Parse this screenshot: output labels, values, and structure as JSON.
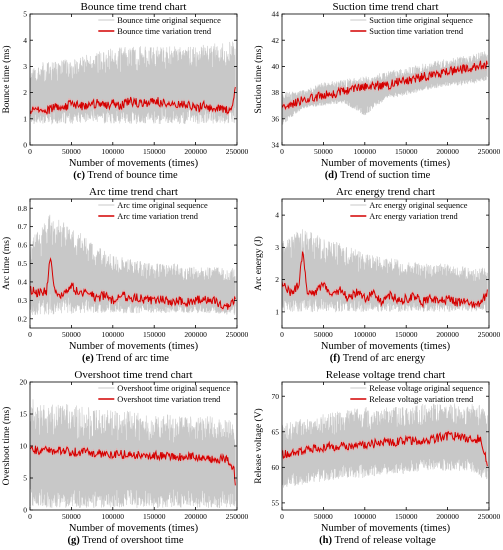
{
  "colors": {
    "original": "#c8c8c8",
    "trend": "#d40000",
    "band": "#f2a6a6",
    "axis": "#000000"
  },
  "chart_data": [
    {
      "id": "c",
      "type": "line",
      "title": "Bounce time trend chart",
      "xlabel": "Number of movements (times)",
      "ylabel": "Bounce time (ms)",
      "xlim": [
        0,
        250000
      ],
      "ylim": [
        0,
        5
      ],
      "xticks": [
        0,
        50000,
        100000,
        150000,
        200000,
        250000
      ],
      "yticks": [
        0,
        1,
        2,
        3,
        4,
        5
      ],
      "legend_position": "top-right",
      "caption_letter": "(c)",
      "caption_text": "Trend of bounce time",
      "series": [
        {
          "name": "Bounce time original sequence",
          "style": "noise",
          "x": [
            0,
            25000,
            50000,
            75000,
            100000,
            125000,
            150000,
            175000,
            200000,
            225000,
            248000
          ],
          "low": [
            0.8,
            0.8,
            0.8,
            0.9,
            0.8,
            0.8,
            0.8,
            0.8,
            0.8,
            0.8,
            0.8
          ],
          "high": [
            3.1,
            3.2,
            3.3,
            3.5,
            3.7,
            3.8,
            3.8,
            3.8,
            3.8,
            3.9,
            4.0
          ]
        },
        {
          "name": "Bounce time variation trend",
          "style": "trend",
          "x": [
            0,
            10000,
            20000,
            30000,
            40000,
            50000,
            60000,
            70000,
            80000,
            90000,
            100000,
            110000,
            120000,
            130000,
            140000,
            150000,
            160000,
            170000,
            180000,
            190000,
            200000,
            210000,
            220000,
            230000,
            240000,
            246000,
            248000
          ],
          "y": [
            1.3,
            1.4,
            1.3,
            1.5,
            1.4,
            1.6,
            1.5,
            1.5,
            1.6,
            1.5,
            1.6,
            1.5,
            1.7,
            1.6,
            1.6,
            1.7,
            1.6,
            1.6,
            1.5,
            1.6,
            1.4,
            1.5,
            1.4,
            1.4,
            1.3,
            1.6,
            2.3
          ]
        }
      ]
    },
    {
      "id": "d",
      "type": "line",
      "title": "Suction time trend chart",
      "xlabel": "Number of movements (times)",
      "ylabel": "Suction time (ms)",
      "xlim": [
        0,
        250000
      ],
      "ylim": [
        34,
        44
      ],
      "xticks": [
        0,
        50000,
        100000,
        150000,
        200000,
        250000
      ],
      "yticks": [
        34,
        36,
        38,
        40,
        42,
        44
      ],
      "legend_position": "top-right",
      "caption_letter": "(d)",
      "caption_text": "Trend of suction time",
      "series": [
        {
          "name": "Suction time original sequence",
          "style": "noise",
          "x": [
            0,
            25000,
            50000,
            75000,
            100000,
            125000,
            150000,
            175000,
            200000,
            225000,
            248000
          ],
          "low": [
            35.5,
            36.8,
            37.0,
            37.2,
            36.2,
            37.5,
            37.8,
            38.2,
            38.5,
            38.6,
            38.9
          ],
          "high": [
            38.0,
            38.2,
            38.8,
            39.0,
            39.3,
            39.6,
            39.9,
            40.3,
            40.6,
            40.9,
            41.2
          ]
        },
        {
          "name": "Suction time variation trend",
          "style": "trend",
          "x": [
            0,
            10000,
            20000,
            30000,
            40000,
            50000,
            60000,
            70000,
            80000,
            90000,
            100000,
            110000,
            120000,
            130000,
            140000,
            150000,
            160000,
            170000,
            180000,
            190000,
            200000,
            210000,
            220000,
            230000,
            240000,
            248000
          ],
          "y": [
            36.9,
            37.0,
            37.3,
            37.5,
            37.6,
            37.8,
            37.9,
            38.0,
            38.2,
            38.3,
            38.4,
            38.5,
            38.6,
            38.6,
            38.8,
            38.9,
            39.0,
            39.2,
            39.3,
            39.4,
            39.6,
            39.7,
            39.8,
            39.9,
            40.1,
            40.2
          ]
        }
      ]
    },
    {
      "id": "e",
      "type": "line",
      "title": "Arc time trend chart",
      "xlabel": "Number of movements (times)",
      "ylabel": "Arc time (ms)",
      "xlim": [
        0,
        250000
      ],
      "ylim": [
        0.15,
        0.85
      ],
      "xticks": [
        0,
        50000,
        100000,
        150000,
        200000,
        250000
      ],
      "yticks": [
        0.2,
        0.3,
        0.4,
        0.5,
        0.6,
        0.7,
        0.8
      ],
      "legend_position": "top-right",
      "caption_letter": "(e)",
      "caption_text": "Trend of arc time",
      "series": [
        {
          "name": "Arc time original sequence",
          "style": "noise",
          "x": [
            0,
            25000,
            50000,
            75000,
            100000,
            125000,
            150000,
            175000,
            200000,
            225000,
            248000
          ],
          "low": [
            0.22,
            0.22,
            0.23,
            0.23,
            0.23,
            0.23,
            0.23,
            0.23,
            0.23,
            0.23,
            0.22
          ],
          "high": [
            0.62,
            0.78,
            0.7,
            0.62,
            0.55,
            0.52,
            0.5,
            0.5,
            0.48,
            0.48,
            0.48
          ]
        },
        {
          "name": "Arc time variation trend",
          "style": "trend",
          "x": [
            0,
            10000,
            20000,
            25000,
            30000,
            40000,
            50000,
            60000,
            70000,
            80000,
            90000,
            100000,
            110000,
            120000,
            130000,
            140000,
            150000,
            160000,
            170000,
            180000,
            190000,
            200000,
            210000,
            220000,
            230000,
            240000,
            248000
          ],
          "y": [
            0.36,
            0.34,
            0.35,
            0.55,
            0.34,
            0.32,
            0.38,
            0.33,
            0.36,
            0.31,
            0.33,
            0.3,
            0.34,
            0.3,
            0.32,
            0.3,
            0.3,
            0.31,
            0.29,
            0.3,
            0.29,
            0.3,
            0.31,
            0.3,
            0.28,
            0.27,
            0.3
          ]
        }
      ]
    },
    {
      "id": "f",
      "type": "line",
      "title": "Arc energy trend chart",
      "xlabel": "Number of movements (times)",
      "ylabel": "Arc energy (J)",
      "xlim": [
        0,
        250000
      ],
      "ylim": [
        0.5,
        4.5
      ],
      "xticks": [
        0,
        50000,
        100000,
        150000,
        200000,
        250000
      ],
      "yticks": [
        1,
        2,
        3,
        4
      ],
      "legend_position": "top-right",
      "caption_letter": "(f)",
      "caption_text": "Trend of arc energy",
      "series": [
        {
          "name": "Arc energy original sequence",
          "style": "noise",
          "x": [
            0,
            25000,
            50000,
            75000,
            100000,
            125000,
            150000,
            175000,
            200000,
            225000,
            248000
          ],
          "low": [
            1.0,
            1.0,
            1.0,
            1.0,
            1.0,
            1.0,
            1.0,
            1.0,
            1.0,
            1.0,
            1.0
          ],
          "high": [
            3.2,
            3.6,
            3.3,
            3.1,
            2.8,
            2.7,
            2.6,
            2.5,
            2.5,
            2.4,
            2.4
          ]
        },
        {
          "name": "Arc energy variation trend",
          "style": "trend",
          "x": [
            0,
            10000,
            20000,
            25000,
            30000,
            40000,
            50000,
            60000,
            70000,
            80000,
            90000,
            100000,
            110000,
            120000,
            130000,
            140000,
            150000,
            160000,
            170000,
            180000,
            190000,
            200000,
            210000,
            220000,
            230000,
            240000,
            248000
          ],
          "y": [
            1.9,
            1.6,
            1.8,
            2.8,
            1.7,
            1.6,
            1.9,
            1.5,
            1.7,
            1.4,
            1.6,
            1.4,
            1.6,
            1.3,
            1.5,
            1.4,
            1.4,
            1.5,
            1.3,
            1.4,
            1.3,
            1.4,
            1.3,
            1.3,
            1.2,
            1.3,
            1.6
          ]
        }
      ]
    },
    {
      "id": "g",
      "type": "line",
      "title": "Overshoot time trend chart",
      "xlabel": "Number of movements (times)",
      "ylabel": "Overshoot time (ms)",
      "xlim": [
        0,
        250000
      ],
      "ylim": [
        0,
        20
      ],
      "xticks": [
        0,
        50000,
        100000,
        150000,
        200000,
        250000
      ],
      "yticks": [
        0,
        5,
        10,
        15,
        20
      ],
      "legend_position": "top-right",
      "caption_letter": "(g)",
      "caption_text": "Trend of overshoot time",
      "series": [
        {
          "name": "Overshoot time original sequence",
          "style": "noise",
          "x": [
            0,
            25000,
            50000,
            75000,
            100000,
            125000,
            150000,
            175000,
            200000,
            225000,
            248000
          ],
          "low": [
            0.3,
            0.3,
            0.3,
            0.3,
            0.3,
            0.3,
            0.3,
            0.3,
            0.3,
            0.3,
            0.3
          ],
          "high": [
            17.5,
            17.0,
            16.5,
            16.0,
            15.5,
            15.5,
            15.0,
            15.0,
            15.0,
            14.5,
            14.0
          ]
        },
        {
          "name": "Overshoot time variation trend",
          "style": "trend",
          "x": [
            0,
            20000,
            40000,
            60000,
            80000,
            100000,
            120000,
            140000,
            160000,
            180000,
            200000,
            220000,
            240000,
            246000,
            248000
          ],
          "y": [
            9.5,
            9.3,
            9.2,
            9.0,
            8.9,
            8.8,
            8.6,
            8.5,
            8.4,
            8.3,
            8.2,
            8.1,
            7.8,
            6.5,
            4.5
          ]
        }
      ]
    },
    {
      "id": "h",
      "type": "line",
      "title": "Release voltage trend chart",
      "xlabel": "Number of movements (times)",
      "ylabel": "Release voltage (V)",
      "xlim": [
        0,
        250000
      ],
      "ylim": [
        54,
        72
      ],
      "xticks": [
        0,
        50000,
        100000,
        150000,
        200000,
        250000
      ],
      "yticks": [
        55,
        60,
        65,
        70
      ],
      "legend_position": "top-right",
      "caption_letter": "(h)",
      "caption_text": "Trend of release voltage",
      "series": [
        {
          "name": "Release voltage original sequence",
          "style": "noise",
          "x": [
            0,
            25000,
            50000,
            75000,
            100000,
            125000,
            150000,
            175000,
            200000,
            225000,
            248000
          ],
          "low": [
            57.0,
            57.5,
            58.0,
            58.5,
            58.5,
            59.0,
            59.0,
            59.5,
            59.5,
            59.5,
            58.0
          ],
          "high": [
            66.0,
            67.0,
            67.5,
            68.0,
            68.5,
            68.5,
            68.5,
            69.0,
            69.0,
            69.0,
            68.5
          ]
        },
        {
          "name": "Release voltage variation trend",
          "style": "trend",
          "x": [
            0,
            10000,
            20000,
            30000,
            40000,
            50000,
            60000,
            70000,
            80000,
            90000,
            100000,
            110000,
            120000,
            130000,
            140000,
            150000,
            160000,
            170000,
            180000,
            190000,
            200000,
            210000,
            220000,
            230000,
            240000,
            248000
          ],
          "y": [
            61.8,
            62.0,
            62.2,
            62.4,
            62.6,
            62.8,
            62.9,
            63.0,
            63.1,
            63.2,
            63.2,
            63.3,
            63.5,
            63.5,
            63.6,
            63.7,
            63.7,
            63.8,
            64.0,
            64.2,
            64.4,
            64.5,
            64.2,
            64.0,
            64.0,
            60.5
          ]
        }
      ]
    }
  ]
}
